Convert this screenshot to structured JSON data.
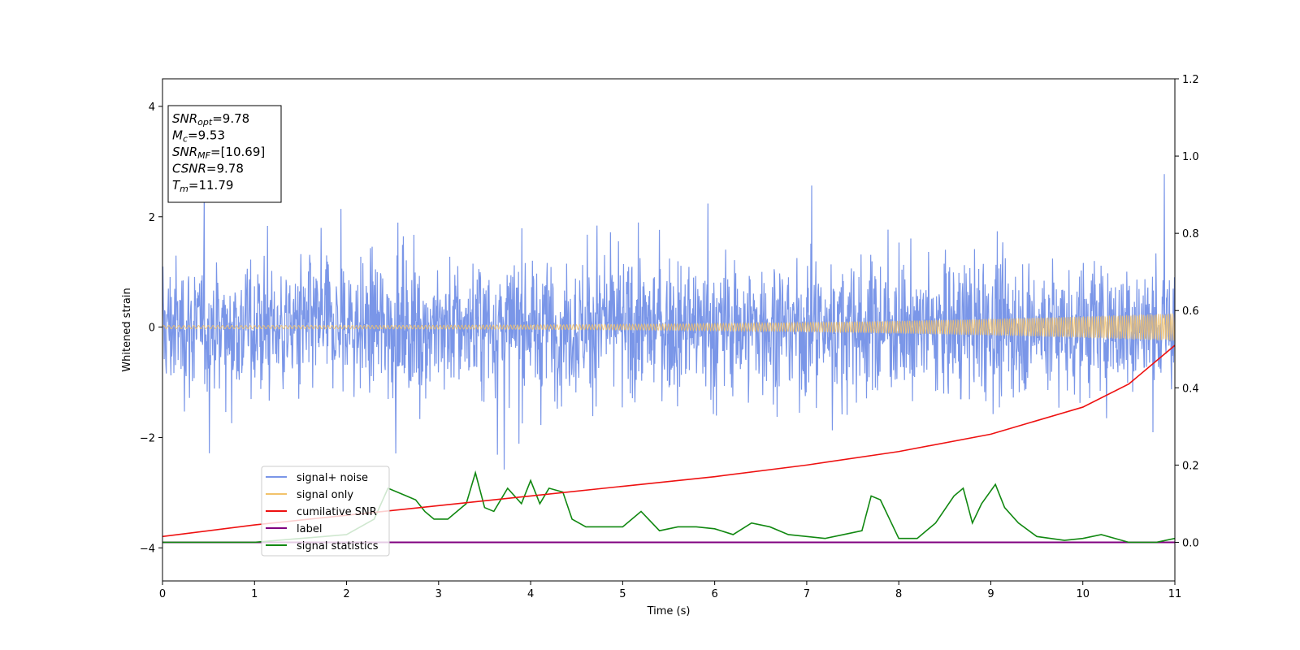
{
  "chart_data": {
    "type": "line",
    "xlabel": "Time (s)",
    "ylabel": "Whitened strain",
    "xlim": [
      0,
      11
    ],
    "ylim": [
      -4.6,
      4.5
    ],
    "y2lim": [
      -0.1,
      1.2
    ],
    "xticks": [
      "0",
      "1",
      "2",
      "3",
      "4",
      "5",
      "6",
      "7",
      "8",
      "9",
      "10",
      "11"
    ],
    "yticks": [
      "4",
      "2",
      "0",
      "−2",
      "−4"
    ],
    "y2ticks": [
      "1.2",
      "1.0",
      "0.8",
      "0.6",
      "0.4",
      "0.2",
      "0.0"
    ],
    "grid": false,
    "legend_position": "lower-left",
    "annotations": [
      {
        "main": "SNR",
        "sub": "opt",
        "value": "=9.78"
      },
      {
        "main": "M",
        "sub": "c",
        "value": "=9.53"
      },
      {
        "main": "SNR",
        "sub": "MF",
        "value": "=[10.69]"
      },
      {
        "main": "CSNR",
        "sub": "",
        "value": "=9.78"
      },
      {
        "main": "T",
        "sub": "m",
        "value": "=11.79"
      }
    ],
    "series": [
      {
        "name": "signal+ noise",
        "axis": "left",
        "color": "#7a96e8",
        "description": "whitened noisy strain, roughly within [-2.5, 3.5]"
      },
      {
        "name": "signal only",
        "axis": "left",
        "color": "#f2c26b",
        "amplitude_start": 0.03,
        "amplitude_end": 0.25
      },
      {
        "name": "cumilative SNR",
        "axis": "right",
        "color": "#ee1111",
        "x": [
          0,
          1,
          2,
          3,
          4,
          5,
          6,
          7,
          8,
          9,
          10,
          10.5,
          11
        ],
        "y": [
          0.015,
          0.045,
          0.07,
          0.095,
          0.12,
          0.145,
          0.17,
          0.2,
          0.235,
          0.28,
          0.35,
          0.41,
          0.51
        ]
      },
      {
        "name": "label",
        "axis": "right",
        "color": "#800080",
        "x": [
          0,
          11
        ],
        "y": [
          0.0,
          0.0
        ]
      },
      {
        "name": "signal statistics",
        "axis": "right",
        "color": "#118811",
        "x": [
          0,
          1,
          1.5,
          2.0,
          2.3,
          2.45,
          2.55,
          2.65,
          2.75,
          2.85,
          2.95,
          3.1,
          3.3,
          3.4,
          3.5,
          3.6,
          3.75,
          3.9,
          4.0,
          4.1,
          4.2,
          4.35,
          4.45,
          4.6,
          4.8,
          5.0,
          5.2,
          5.4,
          5.6,
          5.8,
          6.0,
          6.2,
          6.4,
          6.6,
          6.8,
          7.0,
          7.2,
          7.4,
          7.6,
          7.7,
          7.8,
          7.9,
          8.0,
          8.2,
          8.4,
          8.6,
          8.7,
          8.8,
          8.9,
          9.05,
          9.15,
          9.3,
          9.5,
          9.8,
          10.0,
          10.2,
          10.5,
          10.8,
          11.0
        ],
        "y": [
          0.0,
          0.0,
          0.01,
          0.02,
          0.06,
          0.14,
          0.13,
          0.12,
          0.11,
          0.08,
          0.06,
          0.06,
          0.1,
          0.18,
          0.09,
          0.08,
          0.14,
          0.1,
          0.16,
          0.1,
          0.14,
          0.13,
          0.06,
          0.04,
          0.04,
          0.04,
          0.08,
          0.03,
          0.04,
          0.04,
          0.035,
          0.02,
          0.05,
          0.04,
          0.02,
          0.015,
          0.01,
          0.02,
          0.03,
          0.12,
          0.11,
          0.06,
          0.01,
          0.01,
          0.05,
          0.12,
          0.14,
          0.05,
          0.1,
          0.15,
          0.09,
          0.05,
          0.015,
          0.005,
          0.01,
          0.02,
          0.0,
          0.0,
          0.01
        ]
      }
    ]
  }
}
